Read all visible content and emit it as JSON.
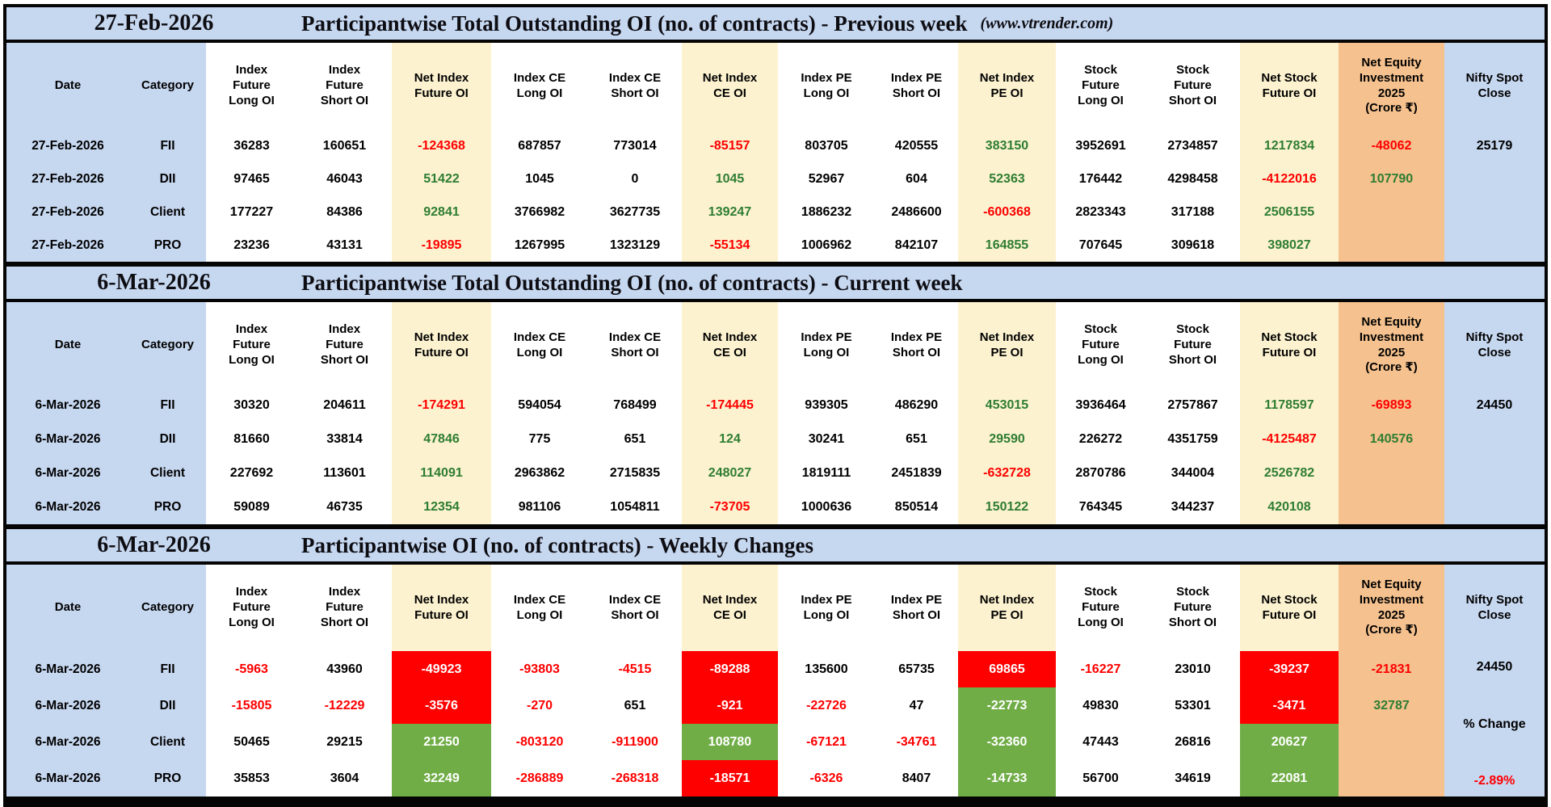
{
  "page": {
    "source_note": "(www.vtrender.com)"
  },
  "colors": {
    "band_blue": "#c6d7f0",
    "net_column_cream": "#fcf2cf",
    "equity_column_orange": "#f5c18e",
    "negative_text_red": "#fe0000",
    "positive_text_green": "#2e7d32",
    "change_fill_red": "#fe0000",
    "change_fill_green": "#70ad47"
  },
  "chart_data": {
    "type": "table",
    "columns": [
      {
        "id": "date",
        "label": "Date",
        "bg": "blue"
      },
      {
        "id": "category",
        "label": "Category",
        "bg": "blue"
      },
      {
        "id": "if_long",
        "label": "Index\nFuture\nLong OI",
        "bg": "white"
      },
      {
        "id": "if_short",
        "label": "Index\nFuture\nShort OI",
        "bg": "white"
      },
      {
        "id": "net_if",
        "label": "Net Index\nFuture OI",
        "bg": "cream"
      },
      {
        "id": "ce_long",
        "label": "Index CE\nLong OI",
        "bg": "white"
      },
      {
        "id": "ce_short",
        "label": "Index CE\nShort OI",
        "bg": "white"
      },
      {
        "id": "net_ce",
        "label": "Net Index\nCE OI",
        "bg": "cream"
      },
      {
        "id": "pe_long",
        "label": "Index PE\nLong OI",
        "bg": "white"
      },
      {
        "id": "pe_short",
        "label": "Index PE\nShort OI",
        "bg": "white"
      },
      {
        "id": "net_pe",
        "label": "Net Index\nPE OI",
        "bg": "cream"
      },
      {
        "id": "sf_long",
        "label": "Stock\nFuture\nLong OI",
        "bg": "white"
      },
      {
        "id": "sf_short",
        "label": "Stock\nFuture\nShort OI",
        "bg": "white"
      },
      {
        "id": "net_sf",
        "label": "Net Stock\nFuture OI",
        "bg": "cream"
      },
      {
        "id": "net_equity",
        "label": "Net Equity\nInvestment\n2025\n(Crore ₹)",
        "bg": "orange"
      },
      {
        "id": "nifty",
        "label": "Nifty Spot\nClose",
        "bg": "nifty"
      }
    ],
    "sections": [
      {
        "id": "previous-week",
        "band_date": "27-Feb-2026",
        "band_title": "Participantwise Total Outstanding OI (no. of contracts) - Previous week",
        "band_note": "(www.vtrender.com)",
        "rows": [
          {
            "date": "27-Feb-2026",
            "category": "FII",
            "cells": [
              [
                "36283",
                "k"
              ],
              [
                "160651",
                "k"
              ],
              [
                "-124368",
                "r"
              ],
              [
                "687857",
                "k"
              ],
              [
                "773014",
                "k"
              ],
              [
                "-85157",
                "r"
              ],
              [
                "803705",
                "k"
              ],
              [
                "420555",
                "k"
              ],
              [
                "383150",
                "g"
              ],
              [
                "3952691",
                "k"
              ],
              [
                "2734857",
                "k"
              ],
              [
                "1217834",
                "g"
              ],
              [
                "-48062",
                "r"
              ],
              [
                "25179",
                "k"
              ]
            ]
          },
          {
            "date": "27-Feb-2026",
            "category": "DII",
            "cells": [
              [
                "97465",
                "k"
              ],
              [
                "46043",
                "k"
              ],
              [
                "51422",
                "g"
              ],
              [
                "1045",
                "k"
              ],
              [
                "0",
                "k"
              ],
              [
                "1045",
                "g"
              ],
              [
                "52967",
                "k"
              ],
              [
                "604",
                "k"
              ],
              [
                "52363",
                "g"
              ],
              [
                "176442",
                "k"
              ],
              [
                "4298458",
                "k"
              ],
              [
                "-4122016",
                "r"
              ],
              [
                "107790",
                "g"
              ],
              [
                "",
                ""
              ]
            ]
          },
          {
            "date": "27-Feb-2026",
            "category": "Client",
            "cells": [
              [
                "177227",
                "k"
              ],
              [
                "84386",
                "k"
              ],
              [
                "92841",
                "g"
              ],
              [
                "3766982",
                "k"
              ],
              [
                "3627735",
                "k"
              ],
              [
                "139247",
                "g"
              ],
              [
                "1886232",
                "k"
              ],
              [
                "2486600",
                "k"
              ],
              [
                "-600368",
                "r"
              ],
              [
                "2823343",
                "k"
              ],
              [
                "317188",
                "k"
              ],
              [
                "2506155",
                "g"
              ],
              [
                "",
                ""
              ],
              [
                "",
                ""
              ]
            ]
          },
          {
            "date": "27-Feb-2026",
            "category": "PRO",
            "cells": [
              [
                "23236",
                "k"
              ],
              [
                "43131",
                "k"
              ],
              [
                "-19895",
                "r"
              ],
              [
                "1267995",
                "k"
              ],
              [
                "1323129",
                "k"
              ],
              [
                "-55134",
                "r"
              ],
              [
                "1006962",
                "k"
              ],
              [
                "842107",
                "k"
              ],
              [
                "164855",
                "g"
              ],
              [
                "707645",
                "k"
              ],
              [
                "309618",
                "k"
              ],
              [
                "398027",
                "g"
              ],
              [
                "",
                ""
              ],
              [
                "",
                ""
              ]
            ]
          }
        ]
      },
      {
        "id": "current-week",
        "band_date": "6-Mar-2026",
        "band_title": "Participantwise Total Outstanding OI (no. of contracts) - Current week",
        "band_note": "",
        "rows": [
          {
            "date": "6-Mar-2026",
            "category": "FII",
            "cells": [
              [
                "30320",
                "k"
              ],
              [
                "204611",
                "k"
              ],
              [
                "-174291",
                "r"
              ],
              [
                "594054",
                "k"
              ],
              [
                "768499",
                "k"
              ],
              [
                "-174445",
                "r"
              ],
              [
                "939305",
                "k"
              ],
              [
                "486290",
                "k"
              ],
              [
                "453015",
                "g"
              ],
              [
                "3936464",
                "k"
              ],
              [
                "2757867",
                "k"
              ],
              [
                "1178597",
                "g"
              ],
              [
                "-69893",
                "r"
              ],
              [
                "24450",
                "k"
              ]
            ]
          },
          {
            "date": "6-Mar-2026",
            "category": "DII",
            "cells": [
              [
                "81660",
                "k"
              ],
              [
                "33814",
                "k"
              ],
              [
                "47846",
                "g"
              ],
              [
                "775",
                "k"
              ],
              [
                "651",
                "k"
              ],
              [
                "124",
                "g"
              ],
              [
                "30241",
                "k"
              ],
              [
                "651",
                "k"
              ],
              [
                "29590",
                "g"
              ],
              [
                "226272",
                "k"
              ],
              [
                "4351759",
                "k"
              ],
              [
                "-4125487",
                "r"
              ],
              [
                "140576",
                "g"
              ],
              [
                "",
                ""
              ]
            ]
          },
          {
            "date": "6-Mar-2026",
            "category": "Client",
            "cells": [
              [
                "227692",
                "k"
              ],
              [
                "113601",
                "k"
              ],
              [
                "114091",
                "g"
              ],
              [
                "2963862",
                "k"
              ],
              [
                "2715835",
                "k"
              ],
              [
                "248027",
                "g"
              ],
              [
                "1819111",
                "k"
              ],
              [
                "2451839",
                "k"
              ],
              [
                "-632728",
                "r"
              ],
              [
                "2870786",
                "k"
              ],
              [
                "344004",
                "k"
              ],
              [
                "2526782",
                "g"
              ],
              [
                "",
                ""
              ],
              [
                "",
                ""
              ]
            ]
          },
          {
            "date": "6-Mar-2026",
            "category": "PRO",
            "cells": [
              [
                "59089",
                "k"
              ],
              [
                "46735",
                "k"
              ],
              [
                "12354",
                "g"
              ],
              [
                "981106",
                "k"
              ],
              [
                "1054811",
                "k"
              ],
              [
                "-73705",
                "r"
              ],
              [
                "1000636",
                "k"
              ],
              [
                "850514",
                "k"
              ],
              [
                "150122",
                "g"
              ],
              [
                "764345",
                "k"
              ],
              [
                "344237",
                "k"
              ],
              [
                "420108",
                "g"
              ],
              [
                "",
                ""
              ],
              [
                "",
                ""
              ]
            ]
          }
        ]
      },
      {
        "id": "weekly-changes",
        "band_date": "6-Mar-2026",
        "band_title": "Participantwise OI (no. of contracts) - Weekly Changes",
        "band_note": "",
        "nifty_summary": {
          "top": "24450",
          "middle": "% Change",
          "bottom": "-2.89%"
        },
        "rows": [
          {
            "date": "6-Mar-2026",
            "category": "FII",
            "cells": [
              [
                "-5963",
                "r"
              ],
              [
                "43960",
                "k"
              ],
              [
                "-49923",
                "R"
              ],
              [
                "-93803",
                "r"
              ],
              [
                "-4515",
                "r"
              ],
              [
                "-89288",
                "R"
              ],
              [
                "135600",
                "k"
              ],
              [
                "65735",
                "k"
              ],
              [
                "69865",
                "R"
              ],
              [
                "-16227",
                "r"
              ],
              [
                "23010",
                "k"
              ],
              [
                "-39237",
                "R"
              ],
              [
                "-21831",
                "r"
              ]
            ]
          },
          {
            "date": "6-Mar-2026",
            "category": "DII",
            "cells": [
              [
                "-15805",
                "r"
              ],
              [
                "-12229",
                "r"
              ],
              [
                "-3576",
                "R"
              ],
              [
                "-270",
                "r"
              ],
              [
                "651",
                "k"
              ],
              [
                "-921",
                "R"
              ],
              [
                "-22726",
                "r"
              ],
              [
                "47",
                "k"
              ],
              [
                "-22773",
                "G"
              ],
              [
                "49830",
                "k"
              ],
              [
                "53301",
                "k"
              ],
              [
                "-3471",
                "R"
              ],
              [
                "32787",
                "g"
              ]
            ]
          },
          {
            "date": "6-Mar-2026",
            "category": "Client",
            "cells": [
              [
                "50465",
                "k"
              ],
              [
                "29215",
                "k"
              ],
              [
                "21250",
                "G"
              ],
              [
                "-803120",
                "r"
              ],
              [
                "-911900",
                "r"
              ],
              [
                "108780",
                "G"
              ],
              [
                "-67121",
                "r"
              ],
              [
                "-34761",
                "r"
              ],
              [
                "-32360",
                "G"
              ],
              [
                "47443",
                "k"
              ],
              [
                "26816",
                "k"
              ],
              [
                "20627",
                "G"
              ],
              [
                "",
                ""
              ]
            ]
          },
          {
            "date": "6-Mar-2026",
            "category": "PRO",
            "cells": [
              [
                "35853",
                "k"
              ],
              [
                "3604",
                "k"
              ],
              [
                "32249",
                "G"
              ],
              [
                "-286889",
                "r"
              ],
              [
                "-268318",
                "r"
              ],
              [
                "-18571",
                "R"
              ],
              [
                "-6326",
                "r"
              ],
              [
                "8407",
                "k"
              ],
              [
                "-14733",
                "G"
              ],
              [
                "56700",
                "k"
              ],
              [
                "34619",
                "k"
              ],
              [
                "22081",
                "G"
              ],
              [
                "",
                ""
              ]
            ]
          }
        ]
      }
    ]
  }
}
